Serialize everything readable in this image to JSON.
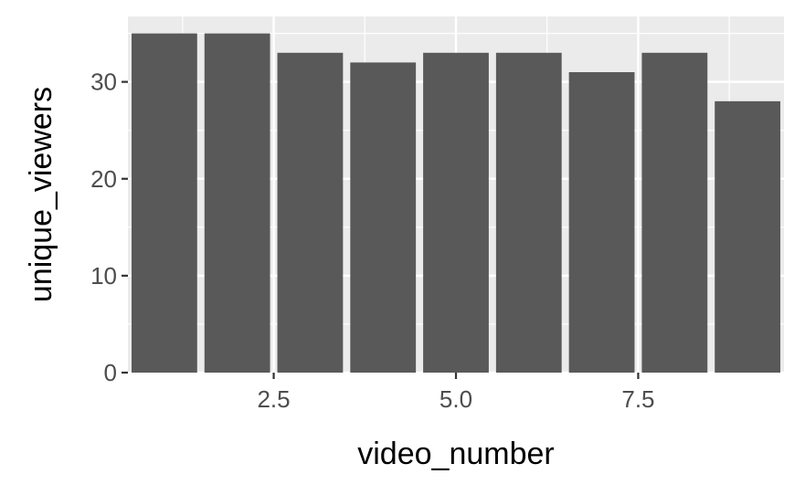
{
  "chart_data": {
    "type": "bar",
    "xlabel": "video_number",
    "ylabel": "unique_viewers",
    "x": [
      1,
      2,
      3,
      4,
      5,
      6,
      7,
      8,
      9
    ],
    "values": [
      35,
      35,
      33,
      32,
      33,
      33,
      31,
      33,
      28
    ],
    "xlim": [
      0.5,
      9.5
    ],
    "ylim": [
      0,
      36.75
    ],
    "x_ticks": [
      2.5,
      5.0,
      7.5
    ],
    "x_tick_labels": [
      "2.5",
      "5.0",
      "7.5"
    ],
    "y_ticks": [
      0,
      10,
      20,
      30
    ],
    "y_tick_labels": [
      "0",
      "10",
      "20",
      "30"
    ],
    "x_minor": [
      1.25,
      3.75,
      6.25,
      8.75
    ],
    "y_minor": [
      5,
      15,
      25,
      35
    ],
    "grid": true,
    "legend": "none",
    "colors": {
      "panel": "#ebebeb",
      "bar": "#595959",
      "grid": "#ffffff",
      "tick": "#333333",
      "tick_text": "#4d4d4d",
      "title_text": "#000000"
    }
  }
}
